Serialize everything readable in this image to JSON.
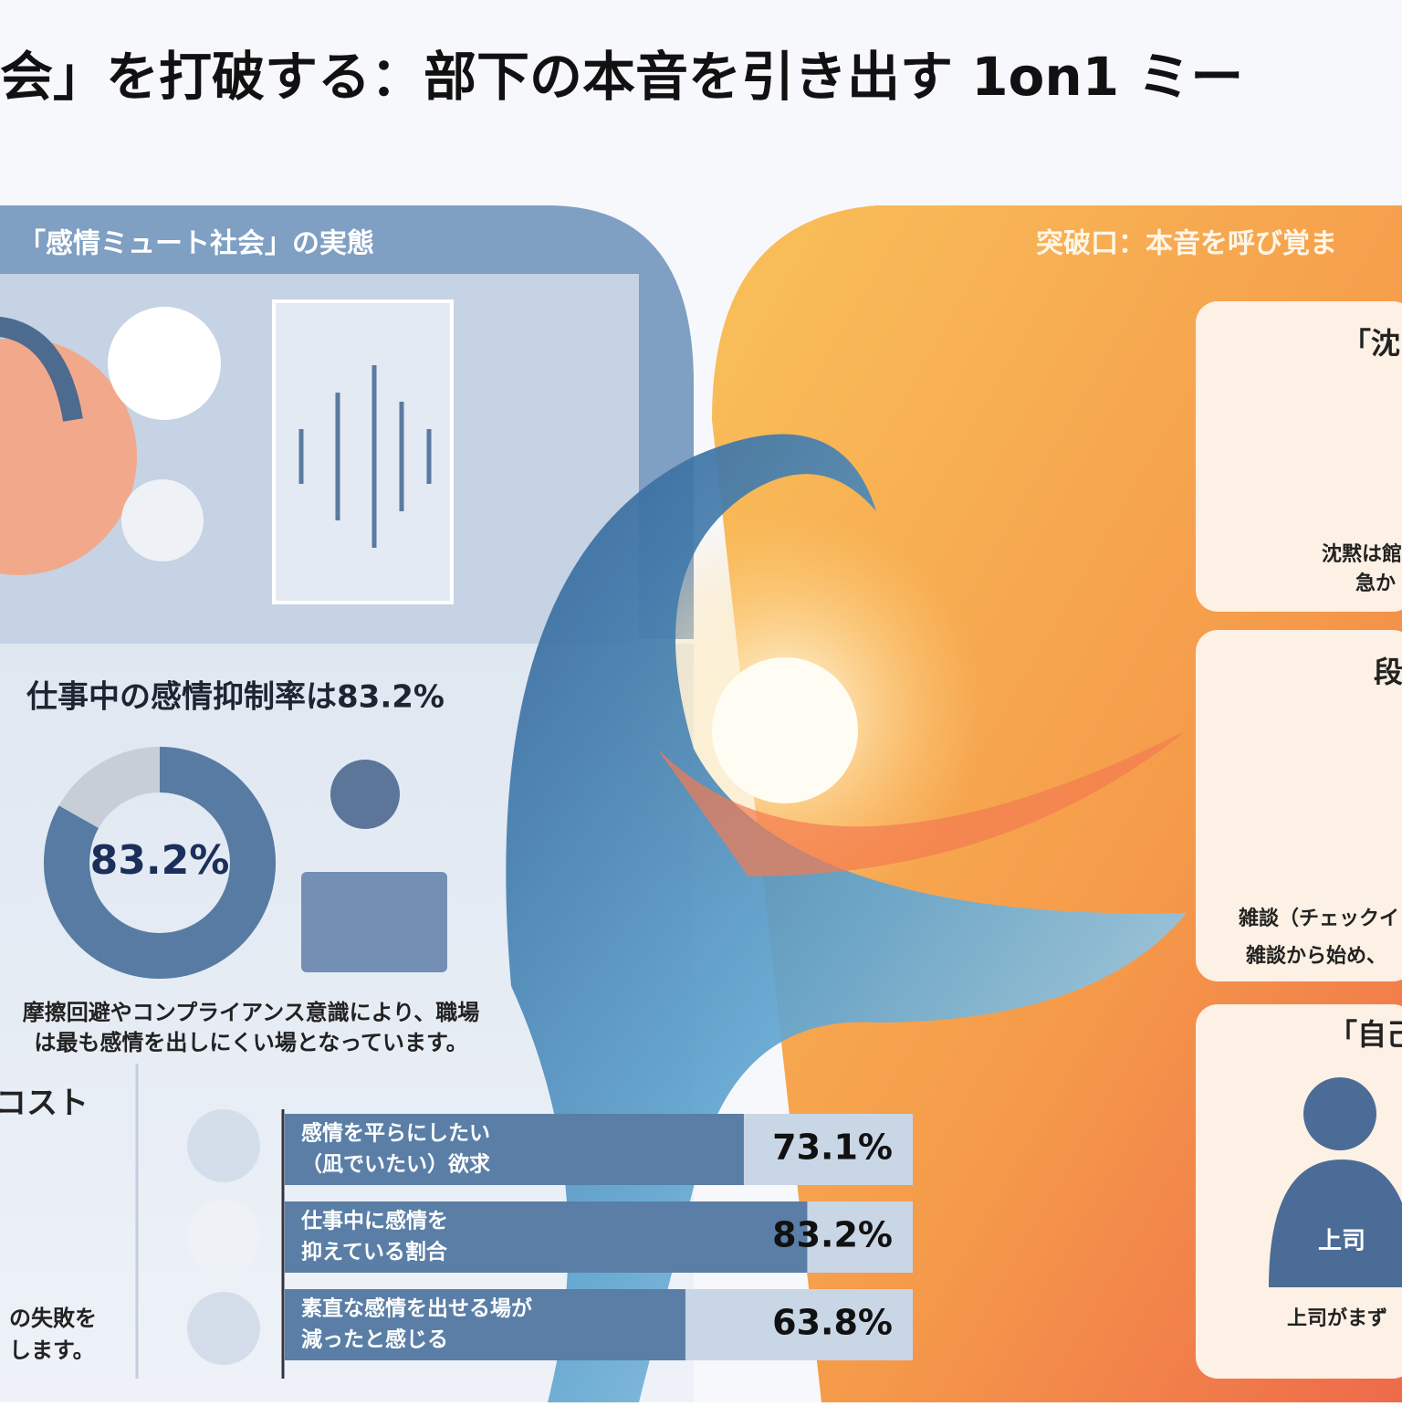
{
  "title": "会」を打破する：部下の本音を引き出す 1on1 ミー",
  "left_panel": {
    "heading": "「感情ミュート社会」の実態",
    "stat_heading": "仕事中の感情抑制率は83.2%",
    "description": [
      "摩擦回避やコンプライアンス意識により、職場",
      "は最も感情を出しにくい場となっています。"
    ],
    "cost_heading": "コスト",
    "cost_text": [
      "の失敗を",
      "します。"
    ]
  },
  "right_panel": {
    "heading": "突破口：本音を呼び覚ま",
    "cards": [
      {
        "title": "「沈",
        "text": [
          "沈黙は館",
          "急か"
        ]
      },
      {
        "title": "段",
        "text": [
          "雑談（チェックイ",
          "雑談から始め、"
        ]
      },
      {
        "title": "「自己",
        "label": "上司",
        "text": [
          "上司がまず"
        ]
      }
    ]
  },
  "chart_data": [
    {
      "type": "donut",
      "values": [
        83.2
      ],
      "value_labels": [
        "83.2%"
      ],
      "ylim": [
        0,
        100
      ],
      "color": "#587ba3"
    },
    {
      "type": "bar",
      "categories": [
        [
          "感情を平らにしたい",
          "（凪でいたい）欲求"
        ],
        [
          "仕事中に感情を",
          "抑えている割合"
        ],
        [
          "素直な感情を出せる場が",
          "減ったと感じる"
        ]
      ],
      "values": [
        73.1,
        83.2,
        63.8
      ],
      "value_labels": [
        "73.1%",
        "83.2%",
        "63.8%"
      ],
      "xlim": [
        0,
        100
      ],
      "color": "#5a7ea6"
    }
  ]
}
